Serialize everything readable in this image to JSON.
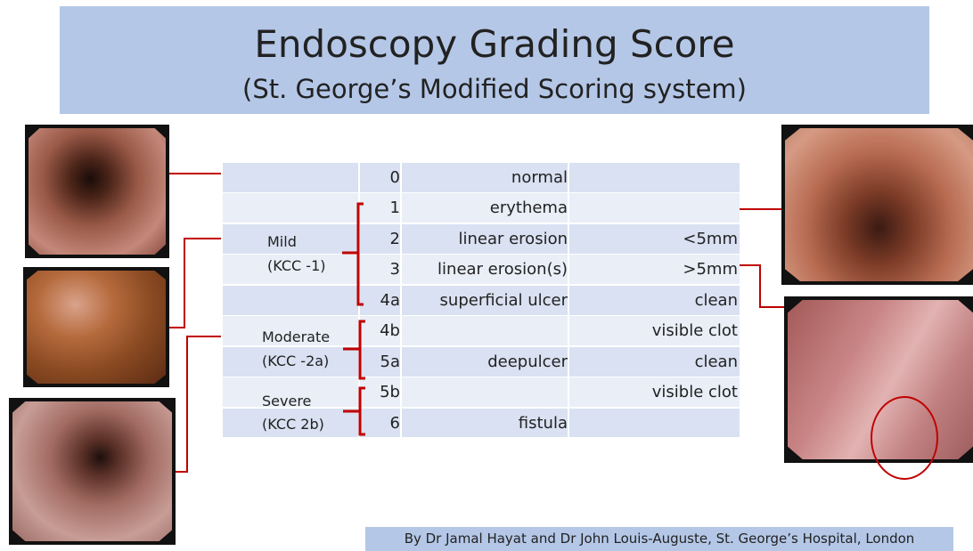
{
  "header": {
    "title": "Endoscopy Grading Score",
    "subtitle": "(St. George’s Modified Scoring system)"
  },
  "table": {
    "rows": [
      {
        "grade": "0",
        "finding": "normal"
      },
      {
        "grade": "1",
        "finding": "erythema"
      },
      {
        "grade": "2",
        "finding": "linear erosion",
        "size": "<5mm"
      },
      {
        "grade": "3",
        "finding": "linear erosion(s)",
        "size": ">5mm"
      },
      {
        "grade": "4a",
        "finding": "superficial ulcer",
        "size": "clean"
      },
      {
        "grade": "4b",
        "size": "visible clot"
      },
      {
        "grade": "5a",
        "finding": "deepulcer",
        "size": "clean"
      },
      {
        "grade": "5b",
        "size": "visible clot"
      },
      {
        "grade": "6",
        "finding": "fistula"
      }
    ],
    "groups": [
      {
        "label": "Mild",
        "sub": "(KCC -1)"
      },
      {
        "label": "Moderate",
        "sub": "(KCC -2a)"
      },
      {
        "label": "Severe",
        "sub": "(KCC 2b)"
      }
    ]
  },
  "footer": "By Dr Jamal Hayat and Dr John Louis-Auguste, St. George’s Hospital, London"
}
